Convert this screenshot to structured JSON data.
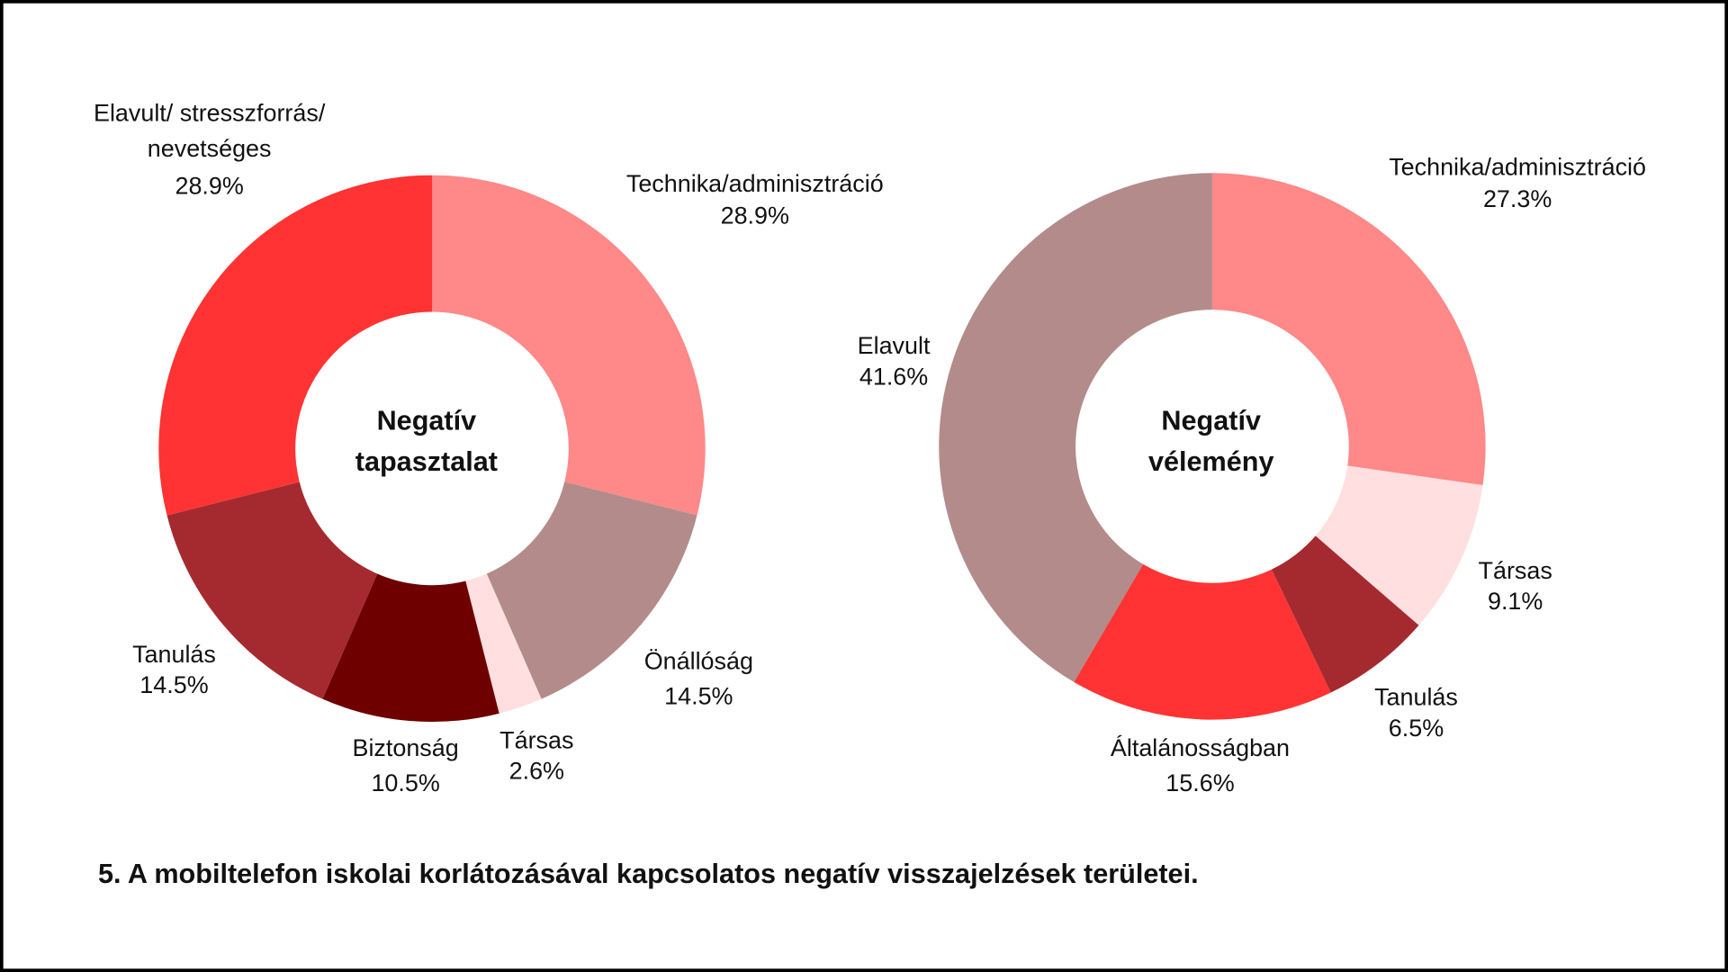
{
  "chart_data": [
    {
      "type": "pie",
      "variant": "donut",
      "center_label": [
        "Negatív",
        "tapasztalat"
      ],
      "start": "top",
      "direction": "clockwise",
      "slices": [
        {
          "label": [
            "Technika/adminisztráció"
          ],
          "value": 28.9,
          "display": "28.9%",
          "color": "#FF8888"
        },
        {
          "label": [
            "Önállóság"
          ],
          "value": 14.5,
          "display": "14.5%",
          "color": "#B38B8B"
        },
        {
          "label": [
            "Társas"
          ],
          "value": 2.6,
          "display": "2.6%",
          "color": "#FFDFE0"
        },
        {
          "label": [
            "Biztonság"
          ],
          "value": 10.5,
          "display": "10.5%",
          "color": "#6E0000"
        },
        {
          "label": [
            "Tanulás"
          ],
          "value": 14.5,
          "display": "14.5%",
          "color": "#A52A2F"
        },
        {
          "label": [
            "Elavult/ stresszforrás/",
            "nevetséges"
          ],
          "value": 28.9,
          "display": "28.9%",
          "color": "#FF3333"
        }
      ]
    },
    {
      "type": "pie",
      "variant": "donut",
      "center_label": [
        "Negatív",
        "vélemény"
      ],
      "start": "top",
      "direction": "clockwise",
      "slices": [
        {
          "label": [
            "Technika/adminisztráció"
          ],
          "value": 27.3,
          "display": "27.3%",
          "color": "#FF8888"
        },
        {
          "label": [
            "Társas"
          ],
          "value": 9.1,
          "display": "9.1%",
          "color": "#FFDFE0"
        },
        {
          "label": [
            "Tanulás"
          ],
          "value": 6.5,
          "display": "6.5%",
          "color": "#A52A2F"
        },
        {
          "label": [
            "Általánosságban"
          ],
          "value": 15.6,
          "display": "15.6%",
          "color": "#FF3333"
        },
        {
          "label": [
            "Elavult"
          ],
          "value": 41.6,
          "display": "41.6%",
          "color": "#B38B8B"
        }
      ]
    }
  ],
  "caption": "5. A mobiltelefon iskolai korlátozásával kapcsolatos negatív visszajelzések területei."
}
